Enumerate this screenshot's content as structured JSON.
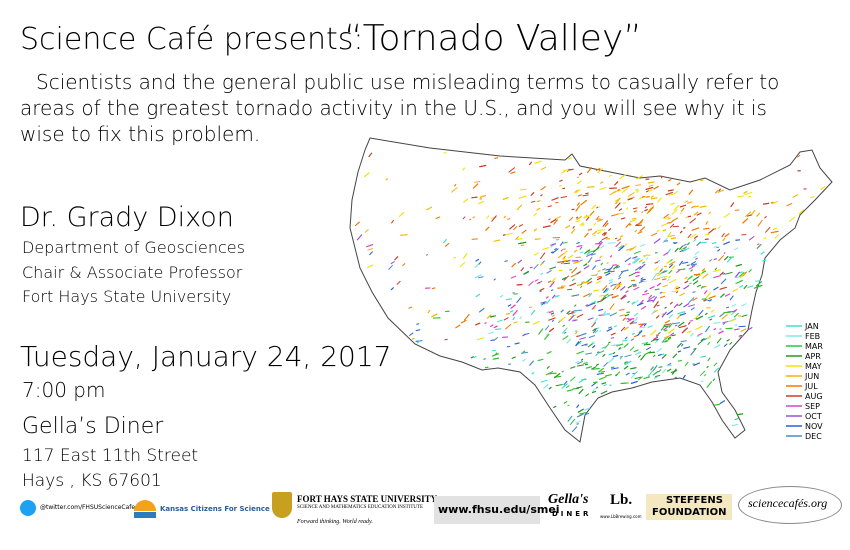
{
  "header": {
    "title": "Science Café presents:",
    "event_title": "“Tornado Valley”",
    "description": [
      "Scientists and the general public use misleading terms to casually refer to",
      "areas of the greatest tornado activity in the U.S., and you will see why it is",
      "wise to fix this problem."
    ]
  },
  "speaker": {
    "name": "Dr. Grady Dixon",
    "details": [
      "Department of Geosciences",
      "Chair & Associate Professor",
      "Fort Hays State University"
    ]
  },
  "event": {
    "date": "Tuesday, January 24, 2017",
    "time": "7:00 pm",
    "venue": "Gella’s Diner",
    "address": [
      "117 East 11th Street",
      "Hays , KS 67601"
    ]
  },
  "map": {
    "legend": [
      {
        "label": "JAN",
        "color": "#40e0c8"
      },
      {
        "label": "FEB",
        "color": "#7fe8f0"
      },
      {
        "label": "MAR",
        "color": "#34c234"
      },
      {
        "label": "APR",
        "color": "#1f9a1f"
      },
      {
        "label": "MAY",
        "color": "#f2e200"
      },
      {
        "label": "JUN",
        "color": "#f5b400"
      },
      {
        "label": "JUL",
        "color": "#f07800"
      },
      {
        "label": "AUG",
        "color": "#c83c28"
      },
      {
        "label": "SEP",
        "color": "#e040c0"
      },
      {
        "label": "OCT",
        "color": "#9850d8"
      },
      {
        "label": "NOV",
        "color": "#2860d8"
      },
      {
        "label": "DEC",
        "color": "#4a8ac8"
      }
    ]
  },
  "footer": {
    "twitter": "@twitter.com/FHSUScienceCafe",
    "kcfs": "Kansas Citizens For Science",
    "fhsu": {
      "name": "FORT HAYS STATE UNIVERSITY",
      "institute": "SCIENCE AND MATHEMATICS EDUCATION INSTITUTE",
      "tagline": "Forward thinking. World ready."
    },
    "url": "www.fhsu.edu/smei",
    "gellas": {
      "name": "Gella's",
      "sub": "DINER"
    },
    "lb": {
      "name": "Lb.",
      "url": "www.LbBrewing.com"
    },
    "steffens": [
      "STEFFENS",
      "FOUNDATION"
    ],
    "sciencecafes": "sciencecafés.org"
  }
}
